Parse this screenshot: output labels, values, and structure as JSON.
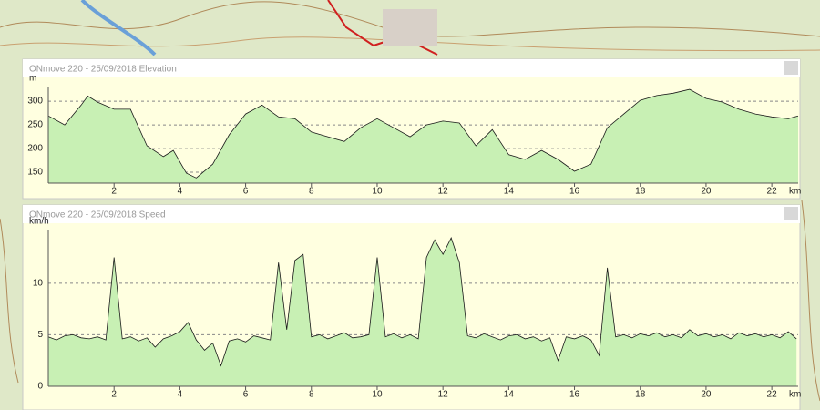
{
  "chart_data": [
    {
      "type": "area",
      "title": "ONmove 220 - 25/09/2018 Elevation",
      "ylabel": "m",
      "xlabel": "km",
      "x": [
        0,
        0.5,
        1,
        1.2,
        1.5,
        2,
        2.5,
        3,
        3.5,
        3.8,
        4.2,
        4.5,
        5,
        5.5,
        6,
        6.5,
        7,
        7.5,
        8,
        8.5,
        9,
        9.5,
        10,
        10.5,
        11,
        11.5,
        12,
        12.5,
        13,
        13.5,
        14,
        14.5,
        15,
        15.5,
        16,
        16.5,
        17,
        17.5,
        18,
        18.5,
        19,
        19.5,
        20,
        20.5,
        21,
        21.5,
        22,
        22.5,
        22.8
      ],
      "series": [
        {
          "name": "Elevation",
          "color": "#c8f0b4",
          "values": [
            269,
            250,
            292,
            311,
            298,
            283,
            283,
            206,
            183,
            196,
            148,
            138,
            167,
            229,
            273,
            292,
            267,
            263,
            235,
            225,
            215,
            244,
            263,
            244,
            225,
            250,
            258,
            254,
            206,
            240,
            187,
            177,
            196,
            177,
            152,
            167,
            244,
            273,
            302,
            312,
            317,
            325,
            306,
            298,
            283,
            273,
            267,
            263,
            269
          ]
        }
      ],
      "xlim": [
        0,
        22.8
      ],
      "ylim": [
        127,
        331
      ],
      "xticks": [
        2,
        4,
        6,
        8,
        10,
        12,
        14,
        16,
        18,
        20,
        22
      ],
      "yticks": [
        150,
        200,
        250,
        300
      ],
      "grid": true
    },
    {
      "type": "area",
      "title": "ONmove 220 - 25/09/2018 Speed",
      "ylabel": "km/h",
      "xlabel": "km",
      "x": [
        0,
        0.25,
        0.5,
        0.75,
        1,
        1.25,
        1.5,
        1.75,
        2,
        2.25,
        2.5,
        2.75,
        3,
        3.25,
        3.5,
        3.75,
        4,
        4.25,
        4.5,
        4.75,
        5,
        5.25,
        5.5,
        5.75,
        6,
        6.25,
        6.5,
        6.75,
        7,
        7.25,
        7.5,
        7.75,
        8,
        8.25,
        8.5,
        8.75,
        9,
        9.25,
        9.5,
        9.75,
        10,
        10.25,
        10.5,
        10.75,
        11,
        11.25,
        11.5,
        11.75,
        12,
        12.25,
        12.5,
        12.75,
        13,
        13.25,
        13.5,
        13.75,
        14,
        14.25,
        14.5,
        14.75,
        15,
        15.25,
        15.5,
        15.75,
        16,
        16.25,
        16.5,
        16.75,
        17,
        17.25,
        17.5,
        17.75,
        18,
        18.25,
        18.5,
        18.75,
        19,
        19.25,
        19.5,
        19.75,
        20,
        20.25,
        20.5,
        20.75,
        21,
        21.25,
        21.5,
        21.75,
        22,
        22.25,
        22.5,
        22.75
      ],
      "series": [
        {
          "name": "Speed",
          "color": "#c8f0b4",
          "values": [
            4.8,
            4.5,
            4.9,
            5.0,
            4.7,
            4.6,
            4.8,
            4.5,
            12.5,
            4.6,
            4.8,
            4.4,
            4.7,
            3.8,
            4.6,
            4.9,
            5.3,
            6.2,
            4.5,
            3.5,
            4.2,
            2.0,
            4.4,
            4.6,
            4.3,
            4.9,
            4.7,
            4.5,
            12.0,
            5.5,
            12.2,
            12.8,
            4.8,
            5.0,
            4.6,
            4.9,
            5.2,
            4.7,
            4.8,
            5.0,
            12.5,
            4.8,
            5.1,
            4.7,
            5.0,
            4.6,
            12.5,
            14.2,
            12.8,
            14.4,
            12.0,
            4.9,
            4.7,
            5.1,
            4.8,
            4.5,
            4.9,
            5.0,
            4.6,
            4.8,
            4.4,
            4.7,
            2.5,
            4.8,
            4.6,
            4.9,
            4.5,
            3.0,
            11.5,
            4.8,
            5.0,
            4.7,
            5.1,
            4.9,
            5.2,
            4.8,
            5.0,
            4.7,
            5.5,
            4.9,
            5.1,
            4.8,
            5.0,
            4.6,
            5.2,
            4.9,
            5.1,
            4.8,
            5.0,
            4.7,
            5.3,
            4.6
          ]
        }
      ],
      "xlim": [
        0,
        22.8
      ],
      "ylim": [
        0,
        15.2
      ],
      "xticks": [
        2,
        4,
        6,
        8,
        10,
        12,
        14,
        16,
        18,
        20,
        22
      ],
      "yticks": [
        0,
        5,
        10
      ],
      "grid": true
    }
  ]
}
